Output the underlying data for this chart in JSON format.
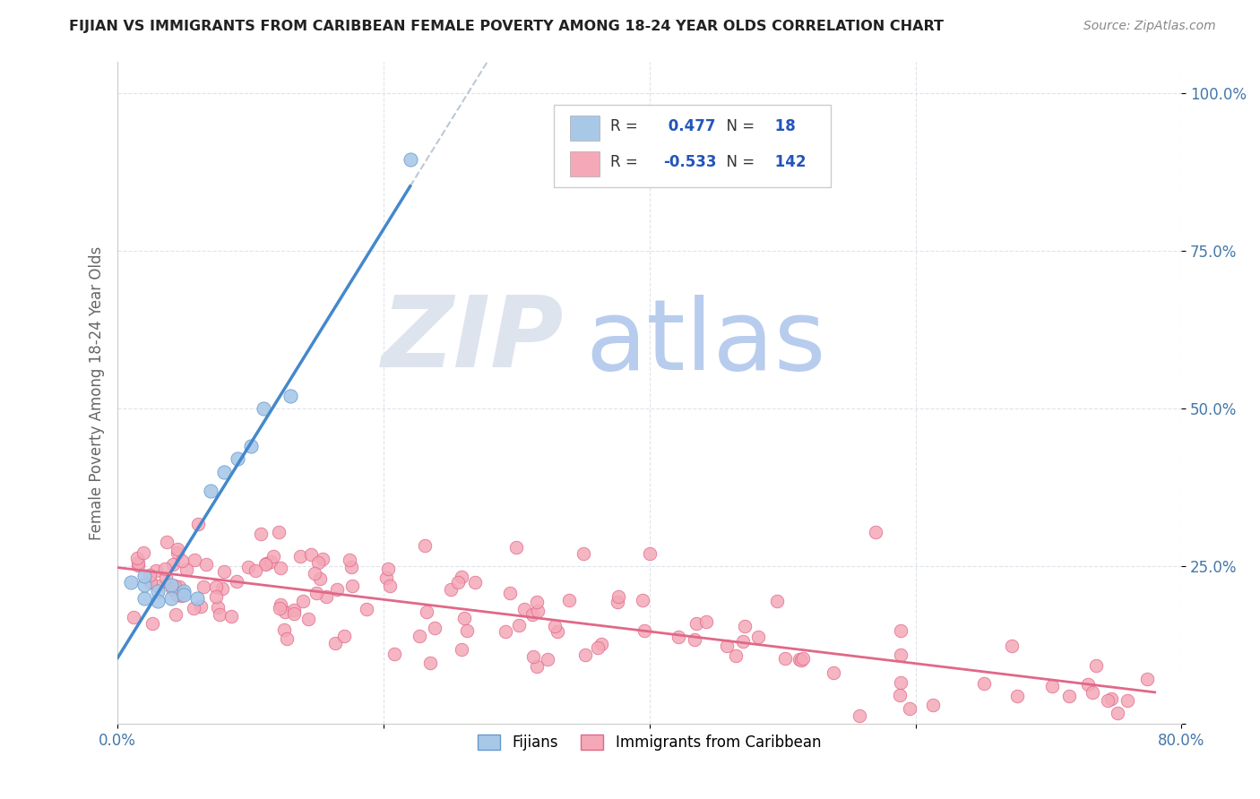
{
  "title": "FIJIAN VS IMMIGRANTS FROM CARIBBEAN FEMALE POVERTY AMONG 18-24 YEAR OLDS CORRELATION CHART",
  "source": "Source: ZipAtlas.com",
  "ylabel": "Female Poverty Among 18-24 Year Olds",
  "xlim": [
    0.0,
    0.8
  ],
  "ylim": [
    0.0,
    1.05
  ],
  "xticks": [
    0.0,
    0.2,
    0.4,
    0.6,
    0.8
  ],
  "xticklabels": [
    "0.0%",
    "",
    "",
    "",
    "80.0%"
  ],
  "yticks": [
    0.0,
    0.25,
    0.5,
    0.75,
    1.0
  ],
  "yticklabels": [
    "",
    "25.0%",
    "50.0%",
    "75.0%",
    "100.0%"
  ],
  "fijian_color": "#a8c8e8",
  "fijian_edge_color": "#6699cc",
  "caribbean_color": "#f4a8b8",
  "caribbean_edge_color": "#e06888",
  "fijian_line_color": "#4488cc",
  "caribbean_line_color": "#e06888",
  "fijian_R": 0.477,
  "fijian_N": 18,
  "caribbean_R": -0.533,
  "caribbean_N": 142,
  "legend_labels": [
    "Fijians",
    "Immigrants from Caribbean"
  ],
  "tick_color": "#4477aa",
  "grid_color": "#d8dde8",
  "ylabel_color": "#666666",
  "fijian_scatter_x": [
    0.01,
    0.02,
    0.02,
    0.03,
    0.04,
    0.04,
    0.05,
    0.06,
    0.07,
    0.08,
    0.09,
    0.1,
    0.11,
    0.13,
    0.22,
    0.02,
    0.03,
    0.05
  ],
  "fijian_scatter_y": [
    0.225,
    0.2,
    0.22,
    0.21,
    0.22,
    0.2,
    0.21,
    0.2,
    0.37,
    0.4,
    0.42,
    0.44,
    0.5,
    0.52,
    0.895,
    0.235,
    0.195,
    0.205
  ]
}
